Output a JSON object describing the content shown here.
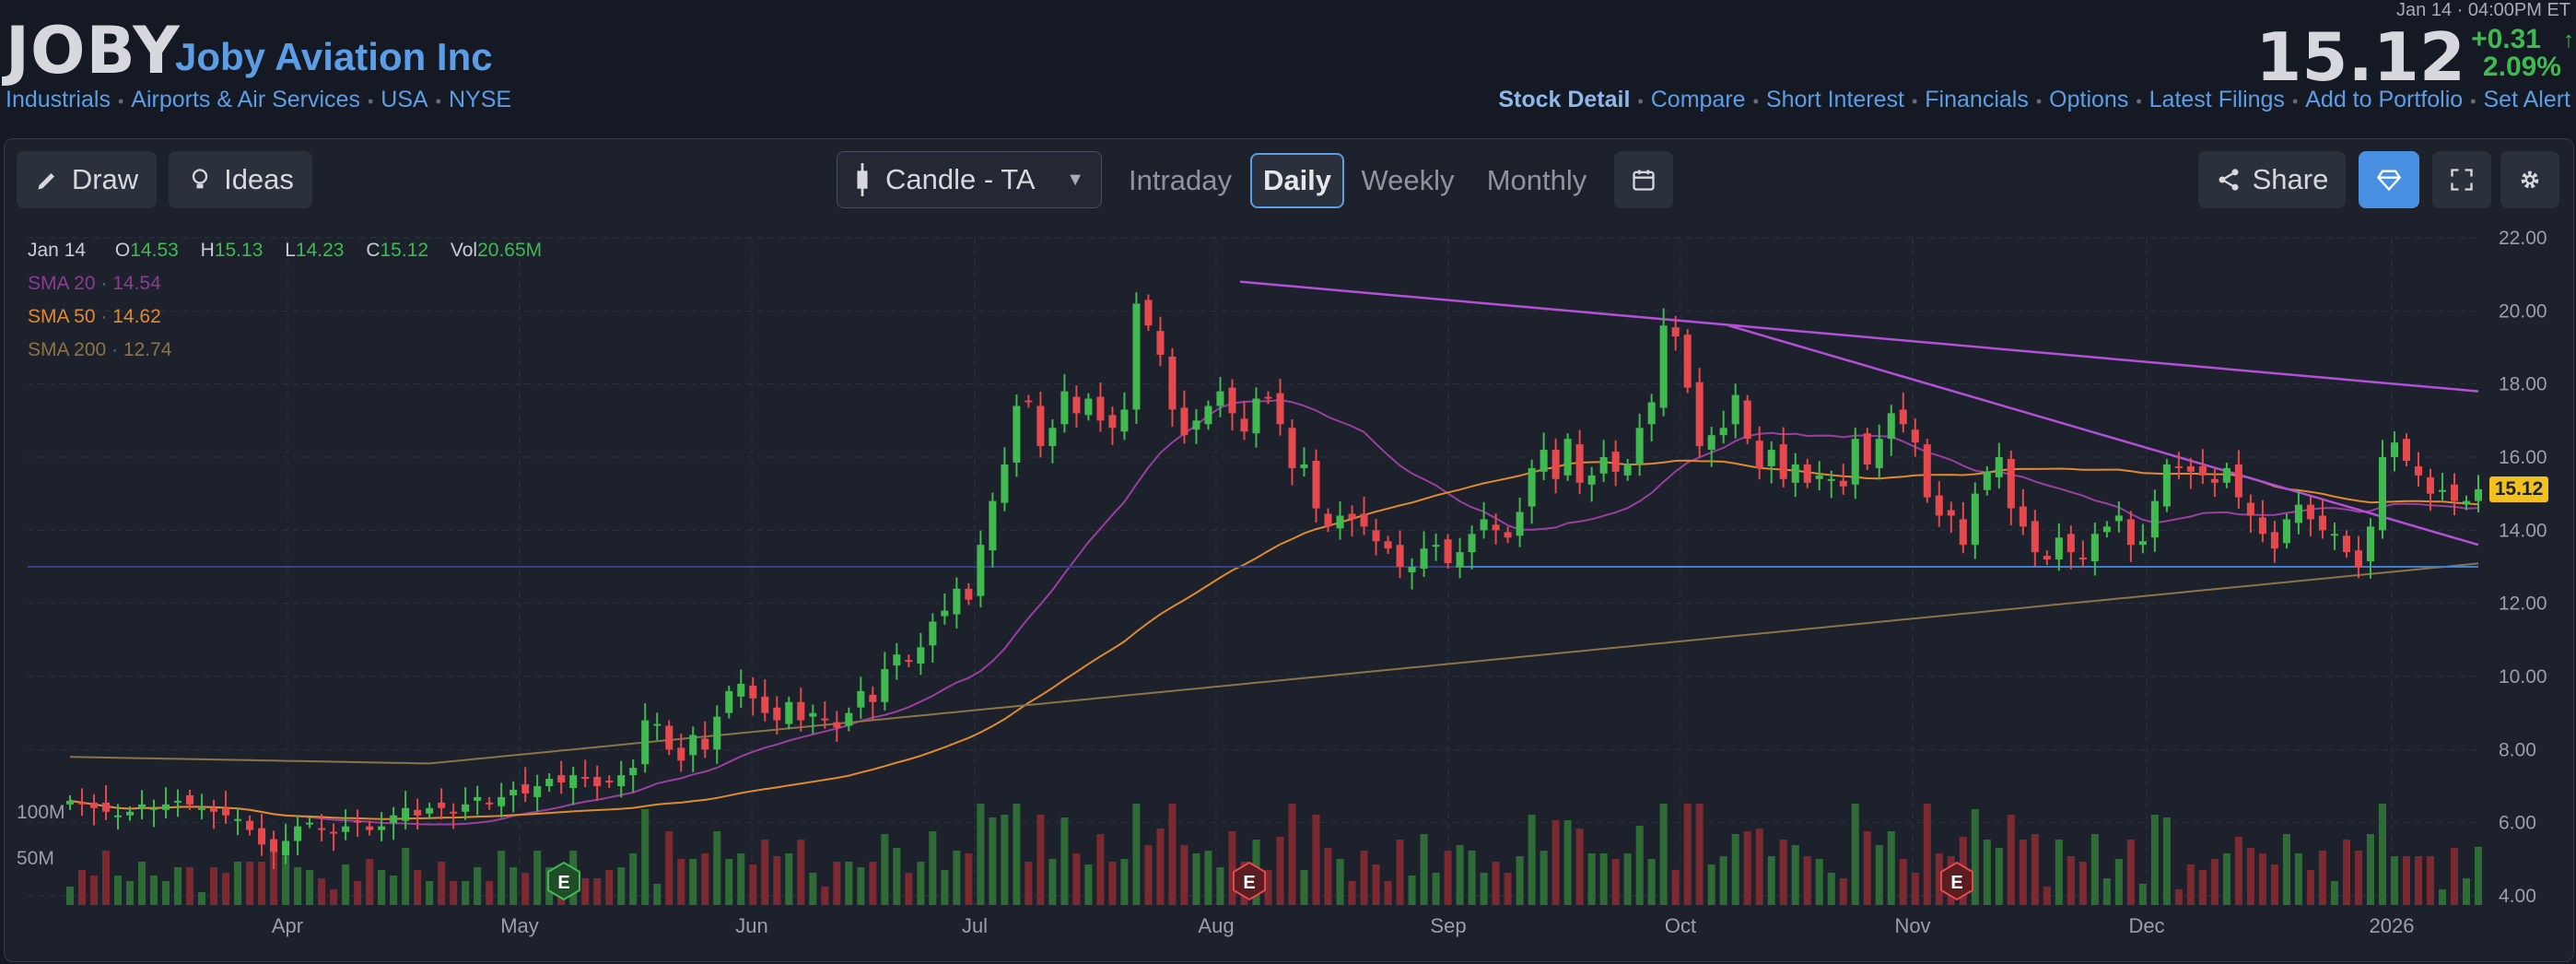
{
  "header": {
    "ticker": "JOBY",
    "company": "Joby Aviation Inc",
    "breadcrumbs": [
      "Industrials",
      "Airports & Air Services",
      "USA",
      "NYSE"
    ],
    "time": "Jan 14 · 04:00PM ET",
    "price": "15.12",
    "change": "+0.31",
    "change_pct": "2.09%",
    "arrow_glyph": "↑",
    "nav_links": [
      "Stock Detail",
      "Compare",
      "Short Interest",
      "Financials",
      "Options",
      "Latest Filings",
      "Add to Portfolio",
      "Set Alert"
    ]
  },
  "toolbar": {
    "draw": "Draw",
    "ideas": "Ideas",
    "chart_type": "Candle - TA",
    "timeframes": [
      "Intraday",
      "Daily",
      "Weekly",
      "Monthly"
    ],
    "selected_timeframe": "Daily",
    "share": "Share"
  },
  "legend": {
    "date": "Jan 14",
    "o_label": "O",
    "o_val": "14.53",
    "h_label": "H",
    "h_val": "15.13",
    "l_label": "L",
    "l_val": "14.23",
    "c_label": "C",
    "c_val": "15.12",
    "vol_label": "Vol",
    "vol_val": "20.65M",
    "sma20_label": "SMA 20",
    "sma20_val": "14.54",
    "sma50_label": "SMA 50",
    "sma50_val": "14.62",
    "sma200_label": "SMA 200",
    "sma200_val": "12.74"
  },
  "colors": {
    "up": "#3fb950",
    "down": "#e5484d",
    "sma20": "#9a3fa0",
    "sma50": "#e08a2f",
    "sma200": "#8a7448",
    "trend": "#b44fd8",
    "support": "#3f80d0",
    "accent": "#5b9ee6",
    "price_label": "#f2c11e"
  },
  "chart_data": {
    "type": "candlestick",
    "y_ticks": [
      "22.00",
      "20.00",
      "18.00",
      "16.00",
      "14.00",
      "12.00",
      "10.00",
      "8.00",
      "6.00",
      "4.00"
    ],
    "ylim": [
      4,
      22
    ],
    "x_ticks": [
      "Apr",
      "May",
      "Jun",
      "Jul",
      "Aug",
      "Sep",
      "Oct",
      "Nov",
      "Dec",
      "2026"
    ],
    "volume_ticks": [
      "100M",
      "50M"
    ],
    "current_price": "15.12",
    "earnings_markers": [
      "E",
      "E",
      "E"
    ],
    "close": [
      6.6,
      6.5,
      6.4,
      6.3,
      6.2,
      6.3,
      6.5,
      6.4,
      6.5,
      6.6,
      6.5,
      6.4,
      6.3,
      6.2,
      6.1,
      5.8,
      5.4,
      5.2,
      5.5,
      5.9,
      6.0,
      5.8,
      5.7,
      5.9,
      6.0,
      5.8,
      5.9,
      6.2,
      6.4,
      6.2,
      6.4,
      6.4,
      6.3,
      6.5,
      6.7,
      6.5,
      6.7,
      6.9,
      6.8,
      7.0,
      7.2,
      7.1,
      7.3,
      7.2,
      7.0,
      7.1,
      7.3,
      7.5,
      8.8,
      8.7,
      8.0,
      7.7,
      8.4,
      8.0,
      8.9,
      9.6,
      9.8,
      9.4,
      9.0,
      8.8,
      9.3,
      8.8,
      9.0,
      8.8,
      8.6,
      9.0,
      9.6,
      9.3,
      10.2,
      10.6,
      10.4,
      10.8,
      11.5,
      11.8,
      12.4,
      12.1,
      13.6,
      14.8,
      15.8,
      17.4,
      17.5,
      16.3,
      16.8,
      17.8,
      17.2,
      17.6,
      17.0,
      16.8,
      17.3,
      20.2,
      19.6,
      18.8,
      17.3,
      16.6,
      17.0,
      17.4,
      17.8,
      17.2,
      16.7,
      17.6,
      17.6,
      16.9,
      15.7,
      15.8,
      14.6,
      14.1,
      14.4,
      14.3,
      14.1,
      13.7,
      13.5,
      13.0,
      13.0,
      13.5,
      13.6,
      13.1,
      13.4,
      13.9,
      14.3,
      14.0,
      13.8,
      14.5,
      15.7,
      16.2,
      15.4,
      16.5,
      15.3,
      15.5,
      16.0,
      15.6,
      15.8,
      16.8,
      17.5,
      19.6,
      19.3,
      17.9,
      16.3,
      16.6,
      16.8,
      17.7,
      16.5,
      15.7,
      16.2,
      15.4,
      15.8,
      15.3,
      15.5,
      15.4,
      15.2,
      16.5,
      15.8,
      16.5,
      17.2,
      16.9,
      16.4,
      14.9,
      14.4,
      14.4,
      13.6,
      15.0,
      15.6,
      16.0,
      14.6,
      14.1,
      13.4,
      13.2,
      13.8,
      13.4,
      13.2,
      13.9,
      14.1,
      14.4,
      13.6,
      13.7,
      14.8,
      15.8,
      15.7,
      15.6,
      15.5,
      15.3,
      15.7,
      14.9,
      14.4,
      13.9,
      13.5,
      14.3,
      14.7,
      14.3,
      14.0,
      13.9,
      13.4,
      13.0,
      14.1,
      16.0,
      16.4,
      15.9,
      15.5,
      15.0,
      15.1,
      14.8,
      14.8,
      15.12
    ]
  }
}
